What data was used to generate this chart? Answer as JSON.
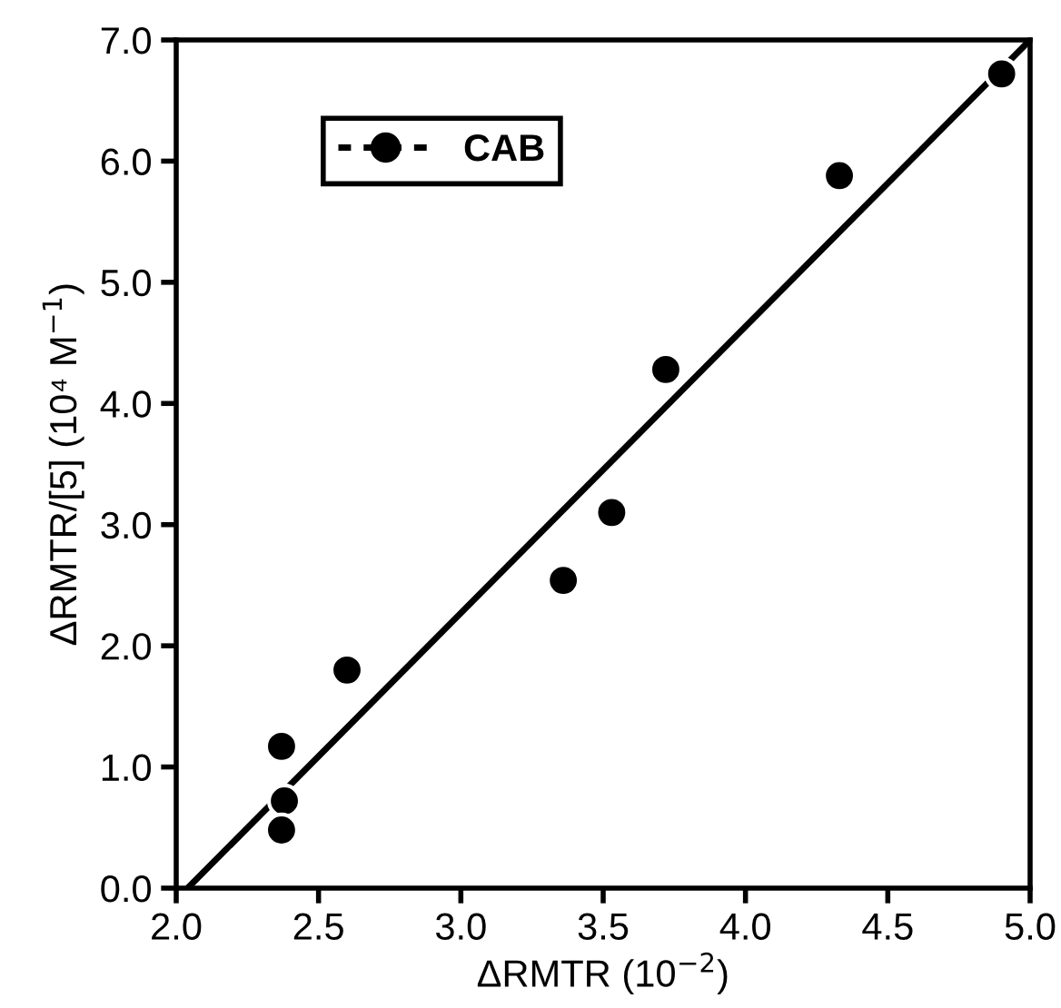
{
  "chart_data": {
    "type": "scatter",
    "xlabel": "ΔRMTR (10$^{−2}$)",
    "ylabel": "ΔRMTR/[5] (10⁴ M$^{−1}$)",
    "xlim": [
      2.0,
      5.0
    ],
    "ylim": [
      0.0,
      7.0
    ],
    "xticks": [
      {
        "value": 2.0,
        "label": "2.0"
      },
      {
        "value": 2.5,
        "label": "2.5"
      },
      {
        "value": 3.0,
        "label": "3.0"
      },
      {
        "value": 3.5,
        "label": "3.5"
      },
      {
        "value": 4.0,
        "label": "4.0"
      },
      {
        "value": 4.5,
        "label": "4.5"
      },
      {
        "value": 5.0,
        "label": "5.0"
      }
    ],
    "yticks": [
      {
        "value": 0.0,
        "label": "0.0"
      },
      {
        "value": 1.0,
        "label": "1.0"
      },
      {
        "value": 2.0,
        "label": "2.0"
      },
      {
        "value": 3.0,
        "label": "3.0"
      },
      {
        "value": 4.0,
        "label": "4.0"
      },
      {
        "value": 5.0,
        "label": "5.0"
      },
      {
        "value": 6.0,
        "label": "6.0"
      },
      {
        "value": 7.0,
        "label": "7.0"
      }
    ],
    "legend": "top left",
    "grid": false,
    "series": [
      {
        "name": "CAB",
        "marker": "circle",
        "color": "#000000",
        "x": [
          2.37,
          2.38,
          2.37,
          2.6,
          3.36,
          3.53,
          3.72,
          4.33,
          4.9
        ],
        "values": [
          1.17,
          0.72,
          0.48,
          1.8,
          2.54,
          3.1,
          4.28,
          5.88,
          6.72
        ]
      },
      {
        "type": "line",
        "marker": "none",
        "color": "#000000",
        "x": [
          2.04,
          5.0
        ],
        "values": [
          0.0,
          7.0
        ]
      }
    ]
  }
}
